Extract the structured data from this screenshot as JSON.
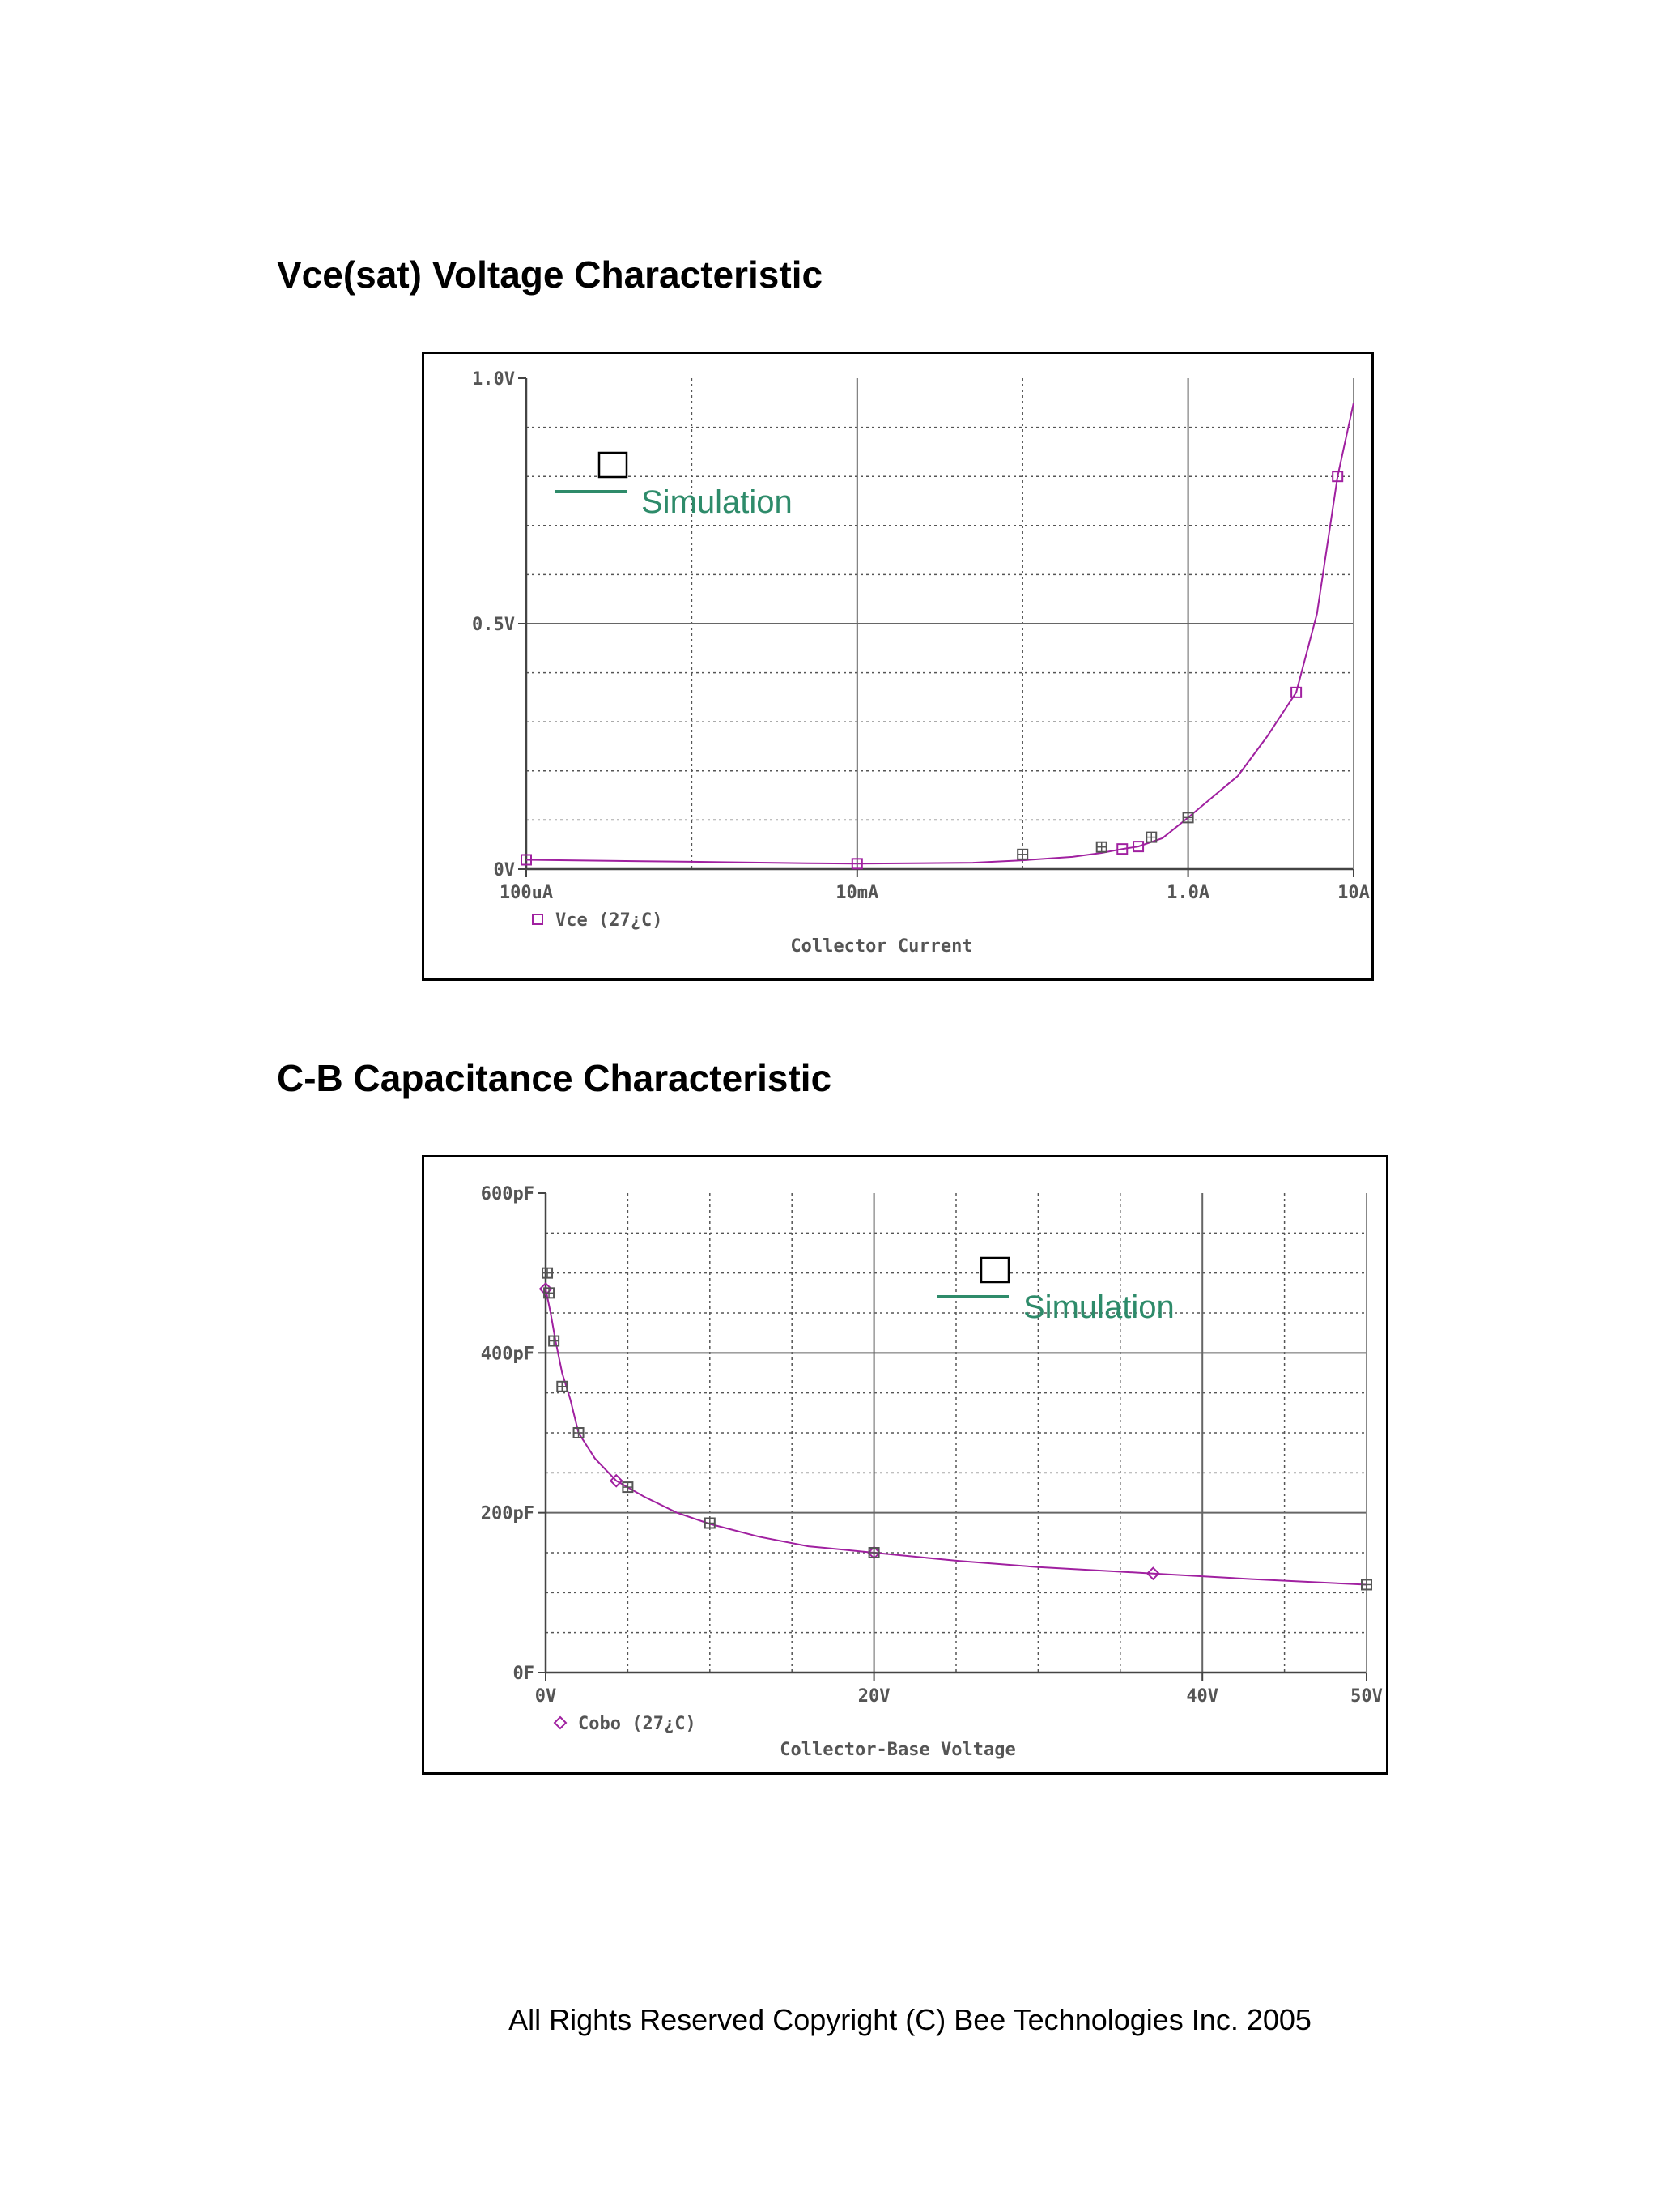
{
  "sections": [
    {
      "title": "Vce(sat) Voltage Characteristic"
    },
    {
      "title": "C-B Capacitance Characteristic"
    }
  ],
  "footer": "All Rights Reserved Copyright (C) Bee Technologies Inc. 2005",
  "colors": {
    "curve": "#a020a0",
    "measured_marker": "#555555",
    "simulation_legend": "#2e8b6a"
  },
  "chart_data": [
    {
      "type": "line",
      "x_scale": "log",
      "xlabel": "Collector Current",
      "ylabel": "",
      "x_ticks": [
        {
          "value": 0.0001,
          "label": "100uA"
        },
        {
          "value": 0.01,
          "label": "10mA"
        },
        {
          "value": 1.0,
          "label": "1.0A"
        },
        {
          "value": 10,
          "label": "10A"
        }
      ],
      "y_ticks": [
        {
          "value": 0,
          "label": "0V"
        },
        {
          "value": 0.5,
          "label": "0.5V"
        },
        {
          "value": 1.0,
          "label": "1.0V"
        }
      ],
      "xlim": [
        0.0001,
        10
      ],
      "ylim": [
        0,
        1.0
      ],
      "grid": true,
      "legend_inside": {
        "marker": "open-square",
        "simulation_label": "Simulation"
      },
      "series": [
        {
          "name": "Vce (27¿C)",
          "marker": "open-square",
          "x": [
            0.0001,
            0.0005,
            0.001,
            0.005,
            0.01,
            0.05,
            0.1,
            0.2,
            0.3,
            0.4,
            0.5,
            0.7,
            1.0,
            2.0,
            3.0,
            4.5,
            6.0,
            8.0,
            10
          ],
          "y": [
            0.019,
            0.016,
            0.015,
            0.012,
            0.011,
            0.013,
            0.018,
            0.025,
            0.033,
            0.041,
            0.046,
            0.063,
            0.105,
            0.19,
            0.27,
            0.36,
            0.52,
            0.8,
            0.95
          ]
        }
      ],
      "measured_points": {
        "x": [
          0.1,
          0.3,
          0.6,
          1.0
        ],
        "y": [
          0.03,
          0.045,
          0.065,
          0.105
        ]
      }
    },
    {
      "type": "line",
      "xlabel": "Collector-Base Voltage",
      "ylabel": "",
      "x_ticks": [
        {
          "value": 0,
          "label": "0V"
        },
        {
          "value": 20,
          "label": "20V"
        },
        {
          "value": 40,
          "label": "40V"
        },
        {
          "value": 50,
          "label": "50V"
        }
      ],
      "y_ticks": [
        {
          "value": 0,
          "label": "0F"
        },
        {
          "value": 200,
          "label": "200pF"
        },
        {
          "value": 400,
          "label": "400pF"
        },
        {
          "value": 600,
          "label": "600pF"
        }
      ],
      "xlim": [
        0,
        50
      ],
      "ylim": [
        0,
        600
      ],
      "grid": true,
      "legend_inside": {
        "marker": "open-square",
        "simulation_label": "Simulation"
      },
      "series": [
        {
          "name": "Cobo (27¿C)",
          "marker": "open-diamond",
          "x": [
            0,
            0.3,
            0.6,
            1,
            1.5,
            2,
            3,
            4.3,
            6,
            8,
            10,
            13,
            16,
            20,
            25,
            30,
            37,
            43,
            50
          ],
          "y": [
            480,
            450,
            415,
            375,
            342,
            300,
            268,
            240,
            220,
            200,
            186,
            170,
            158,
            150,
            140,
            132,
            124,
            117,
            110
          ]
        }
      ],
      "measured_points": {
        "x": [
          0.1,
          0.2,
          0.5,
          1,
          2,
          5,
          10,
          20,
          50
        ],
        "y": [
          500,
          475,
          415,
          358,
          300,
          232,
          187,
          150,
          110
        ]
      }
    }
  ]
}
